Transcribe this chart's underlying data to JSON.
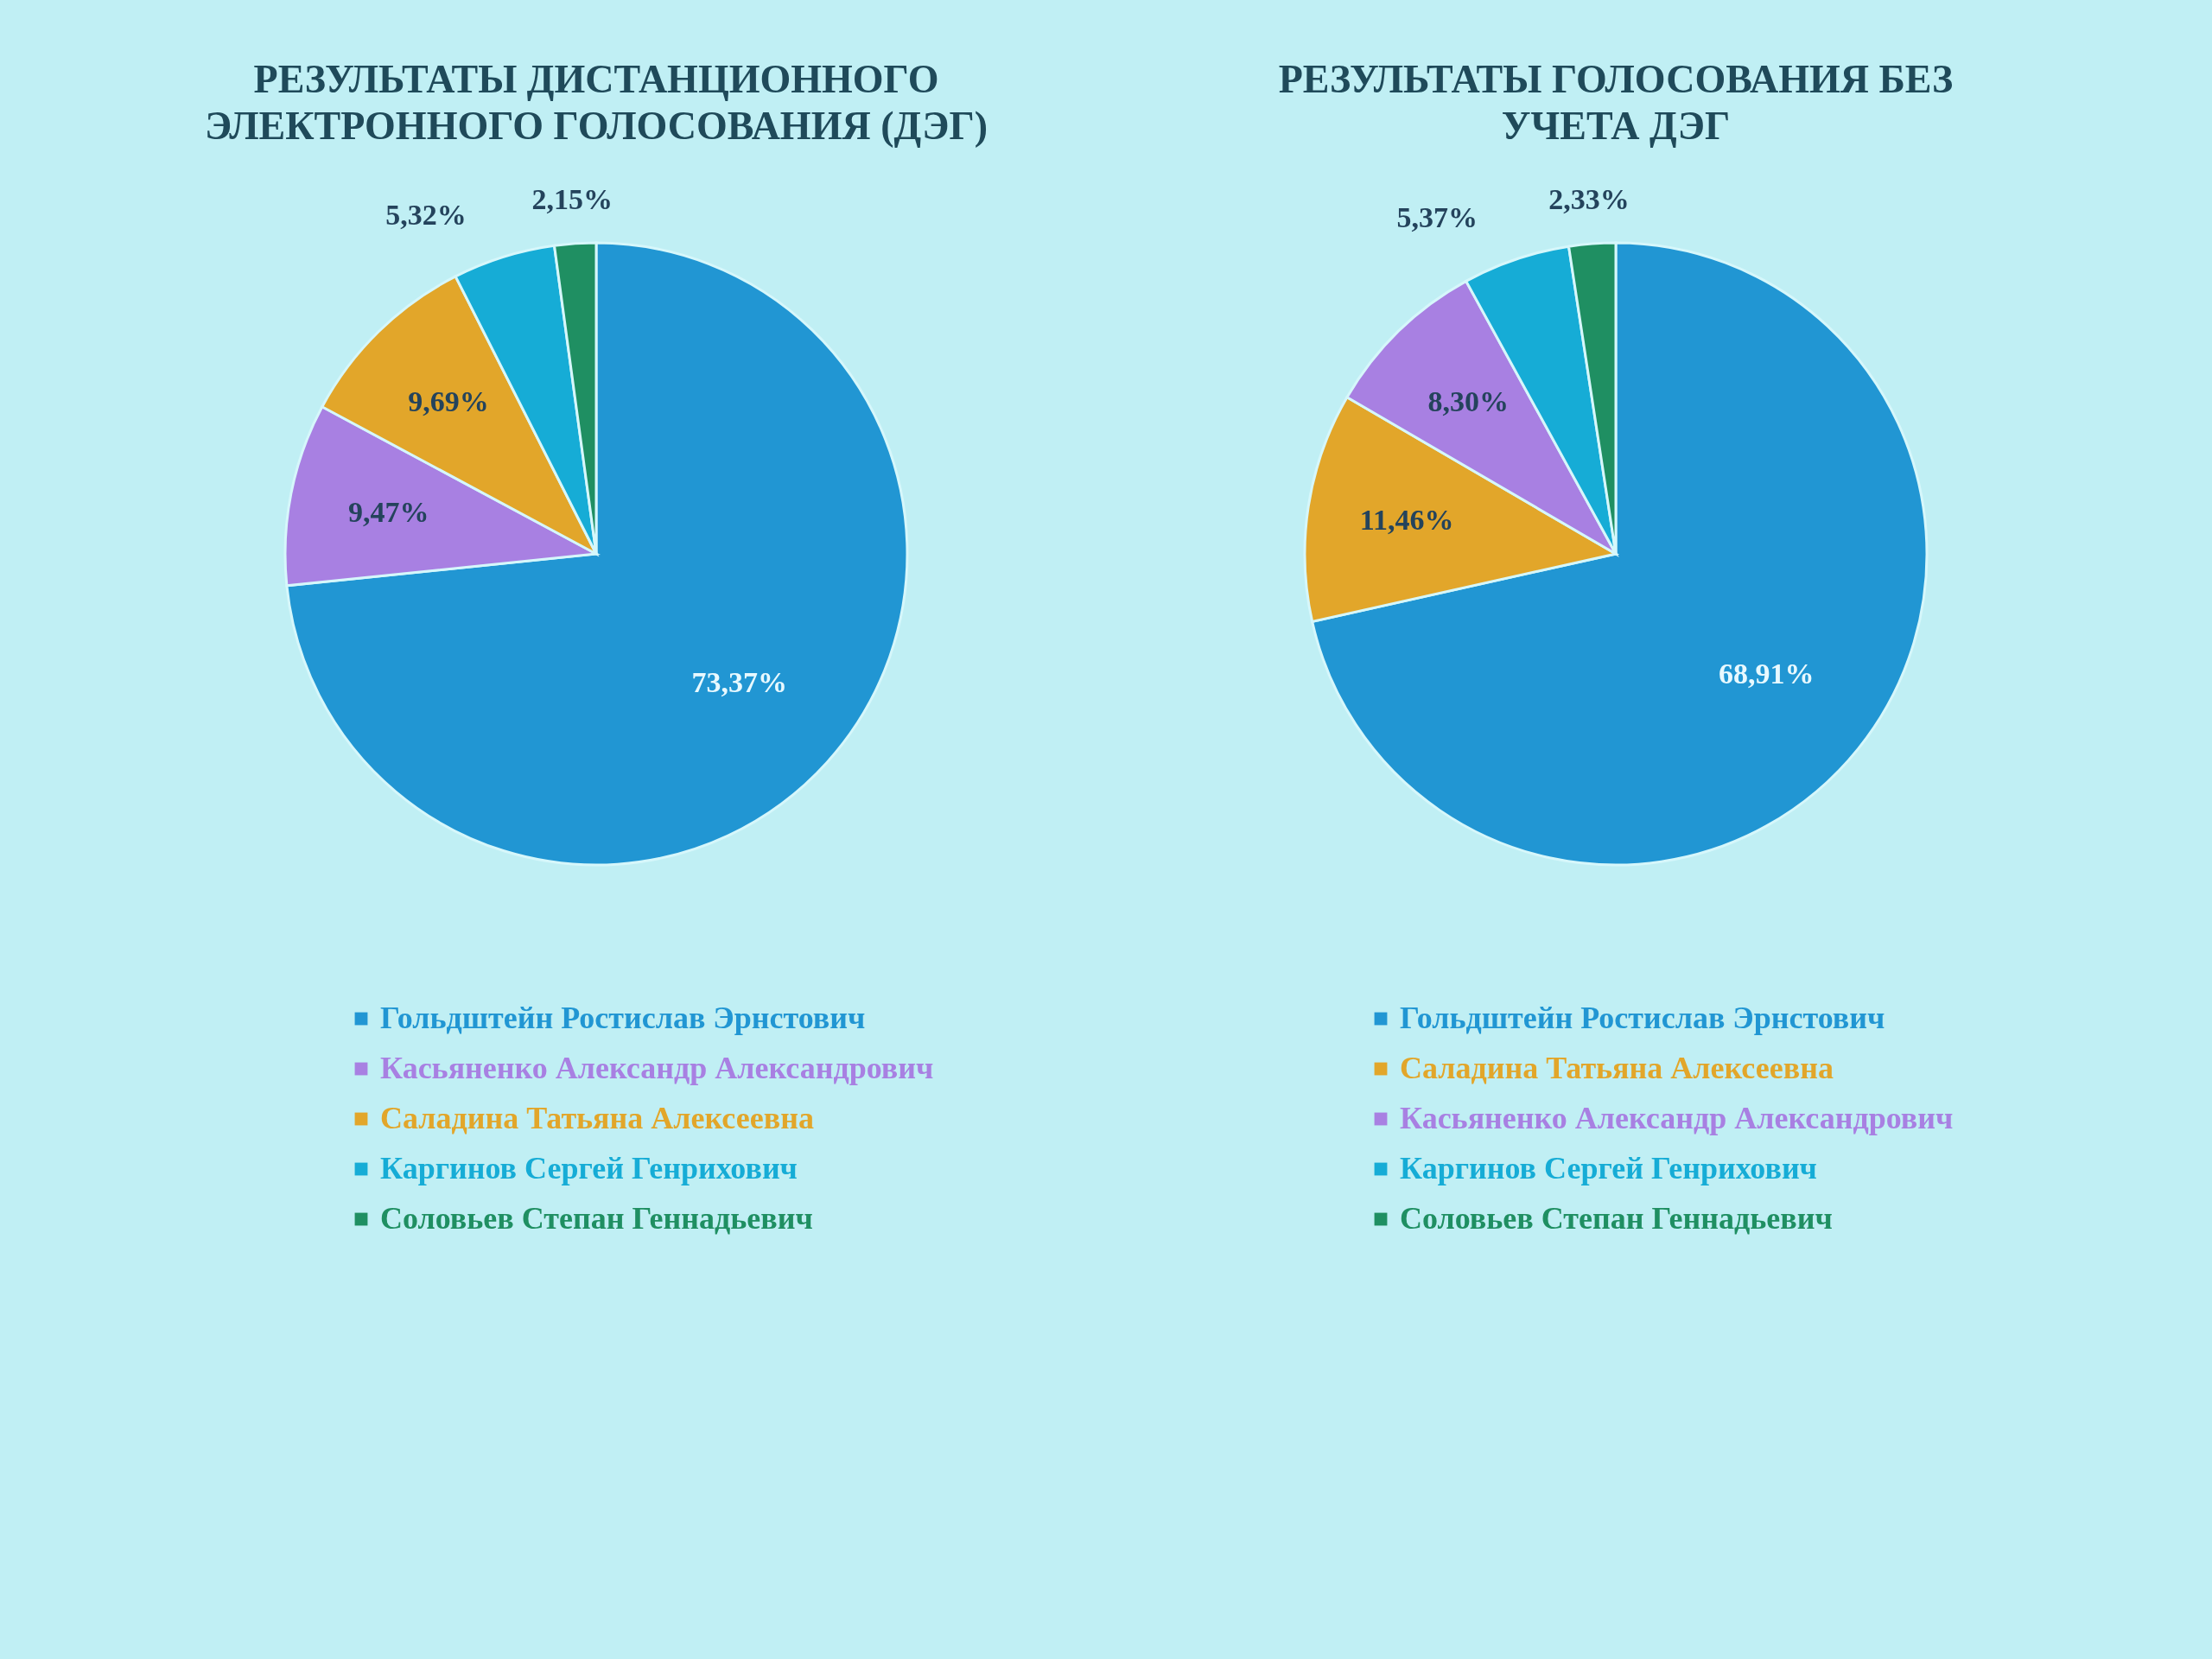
{
  "chart_data": [
    {
      "type": "pie",
      "title": "РЕЗУЛЬТАТЫ ДИСТАНЦИОННОГО ЭЛЕКТРОННОГО ГОЛОСОВАНИЯ (ДЭГ)",
      "categories": [
        "Гольдштейн Ростислав Эрнстович",
        "Касьяненко Александр Александрович",
        "Саладина Татьяна Алексеевна",
        "Каргинов Сергей Генрихович",
        "Соловьев Степан Геннадьевич"
      ],
      "values": [
        73.37,
        9.47,
        9.69,
        5.32,
        2.15
      ],
      "value_labels": [
        "73,37%",
        "9,47%",
        "9,69%",
        "5,32%",
        "2,15%"
      ],
      "colors": [
        "#2196d3",
        "#a880e2",
        "#e2a62a",
        "#16acd6",
        "#1f8f62"
      ],
      "legend": "bottom"
    },
    {
      "type": "pie",
      "title": "РЕЗУЛЬТАТЫ ГОЛОСОВАНИЯ БЕЗ УЧЕТА ДЭГ",
      "categories": [
        "Гольдштейн Ростислав Эрнстович",
        "Саладина Татьяна Алексеевна",
        "Касьяненко Александр Александрович",
        "Каргинов Сергей Генрихович",
        "Соловьев Степан Геннадьевич"
      ],
      "values": [
        68.91,
        11.46,
        8.3,
        5.37,
        2.33
      ],
      "value_labels": [
        "68,91%",
        "11,46%",
        "8,30%",
        "5,37%",
        "2,33%"
      ],
      "colors": [
        "#2196d3",
        "#e2a62a",
        "#a880e2",
        "#16acd6",
        "#1f8f62"
      ],
      "legend": "bottom"
    }
  ]
}
